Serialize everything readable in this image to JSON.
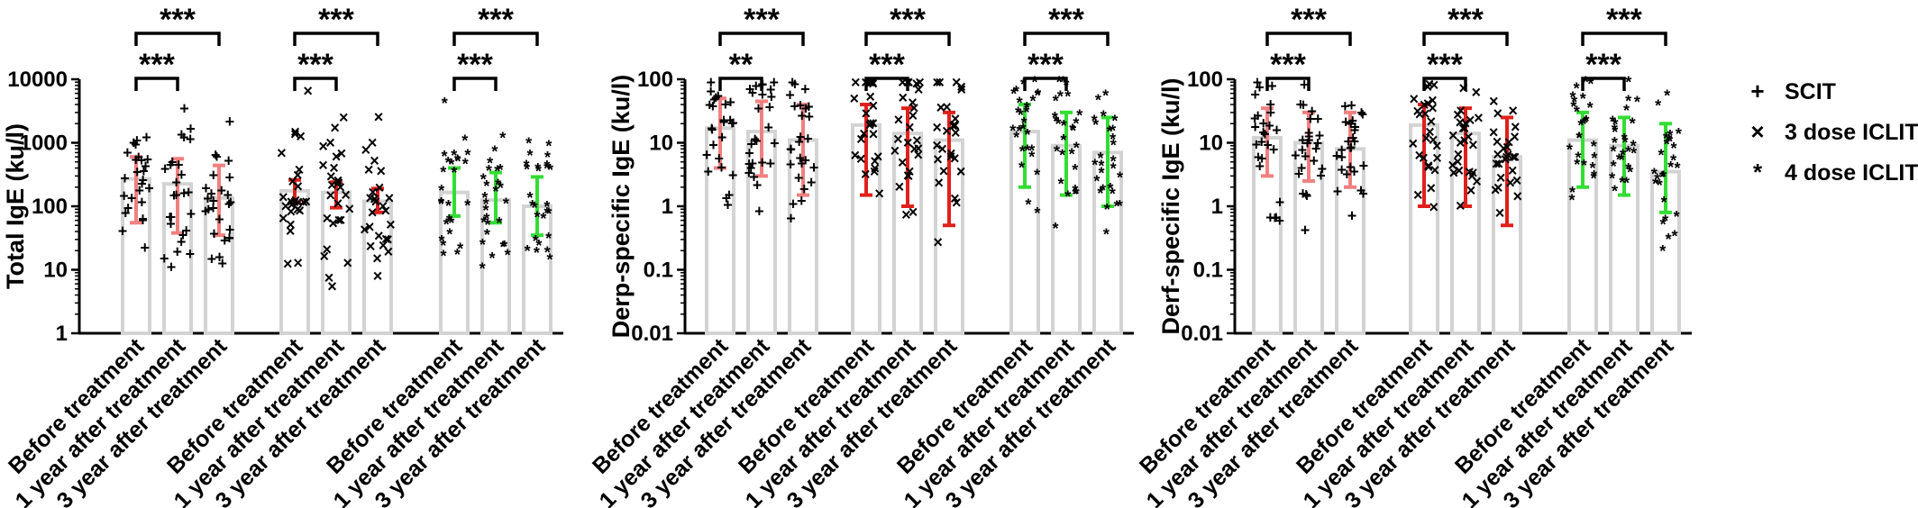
{
  "chart_data": [
    {
      "type": "bar",
      "ylabel": "Total  IgE (ku/l)",
      "yscale": "log",
      "ylim": [
        1,
        10000
      ],
      "yticks": [
        "1",
        "10",
        "100",
        "1000",
        "10000"
      ],
      "categories": [
        "Before treatment",
        "1 year after treatment",
        "3 year after treatment"
      ],
      "series": [
        {
          "name": "SCIT",
          "values": [
            270,
            225,
            135
          ],
          "err_low": [
            55,
            38,
            35
          ],
          "err_high": [
            600,
            560,
            440
          ]
        },
        {
          "name": "3 dose ICLIT",
          "values": [
            175,
            165,
            120
          ],
          "err_low": [
            115,
            95,
            80
          ],
          "err_high": [
            260,
            240,
            190
          ]
        },
        {
          "name": "4 dose ICLIT",
          "values": [
            165,
            125,
            100
          ],
          "err_low": [
            70,
            55,
            35
          ],
          "err_high": [
            400,
            340,
            290
          ]
        }
      ],
      "significance": [
        {
          "series": "SCIT",
          "pairs": [
            [
              "Before treatment",
              "1 year after treatment",
              "***"
            ],
            [
              "Before treatment",
              "3 year after treatment",
              "***"
            ]
          ]
        },
        {
          "series": "3 dose ICLIT",
          "pairs": [
            [
              "Before treatment",
              "1 year after treatment",
              "***"
            ],
            [
              "Before treatment",
              "3 year after treatment",
              "***"
            ]
          ]
        },
        {
          "series": "4 dose ICLIT",
          "pairs": [
            [
              "Before treatment",
              "1 year after treatment",
              "***"
            ],
            [
              "Before treatment",
              "3 year after treatment",
              "***"
            ]
          ]
        }
      ]
    },
    {
      "type": "bar",
      "ylabel": "Derp-specific IgE (ku/l)",
      "yscale": "log",
      "ylim": [
        0.01,
        100
      ],
      "yticks": [
        "0.01",
        "0.1",
        "1",
        "10",
        "100"
      ],
      "categories": [
        "Before treatment",
        "1 year after treatment",
        "3 year after treatment"
      ],
      "series": [
        {
          "name": "SCIT",
          "values": [
            17,
            15,
            11
          ],
          "err_low": [
            4,
            3,
            1.5
          ],
          "err_high": [
            50,
            45,
            40
          ]
        },
        {
          "name": "3 dose ICLIT",
          "values": [
            19,
            14,
            11
          ],
          "err_low": [
            1.5,
            1,
            0.5
          ],
          "err_high": [
            40,
            35,
            30
          ]
        },
        {
          "name": "4 dose ICLIT",
          "values": [
            15,
            9,
            7
          ],
          "err_low": [
            2,
            1.5,
            1
          ],
          "err_high": [
            40,
            30,
            25
          ]
        }
      ],
      "significance": [
        {
          "series": "SCIT",
          "pairs": [
            [
              "Before treatment",
              "1 year after treatment",
              "**"
            ],
            [
              "Before treatment",
              "3 year after treatment",
              "***"
            ]
          ]
        },
        {
          "series": "3 dose ICLIT",
          "pairs": [
            [
              "Before treatment",
              "1 year after treatment",
              "***"
            ],
            [
              "Before treatment",
              "3 year after treatment",
              "***"
            ]
          ]
        },
        {
          "series": "4 dose ICLIT",
          "pairs": [
            [
              "Before treatment",
              "1 year after treatment",
              "***"
            ],
            [
              "Before treatment",
              "3 year after treatment",
              "***"
            ]
          ]
        }
      ]
    },
    {
      "type": "bar",
      "ylabel": "Derf-specific IgE (ku/l)",
      "yscale": "log",
      "ylim": [
        0.01,
        100
      ],
      "yticks": [
        "0.01",
        "0.1",
        "1",
        "10",
        "100"
      ],
      "categories": [
        "Before treatment",
        "1 year after treatment",
        "3 year after treatment"
      ],
      "series": [
        {
          "name": "SCIT",
          "values": [
            12,
            10,
            8
          ],
          "err_low": [
            3,
            2.5,
            2
          ],
          "err_high": [
            35,
            30,
            30
          ]
        },
        {
          "name": "3 dose ICLIT",
          "values": [
            19,
            14,
            6
          ],
          "err_low": [
            1,
            1,
            0.5
          ],
          "err_high": [
            40,
            35,
            25
          ]
        },
        {
          "name": "4 dose ICLIT",
          "values": [
            11,
            9,
            3.5
          ],
          "err_low": [
            2,
            1.5,
            0.8
          ],
          "err_high": [
            30,
            25,
            20
          ]
        }
      ],
      "significance": [
        {
          "series": "SCIT",
          "pairs": [
            [
              "Before treatment",
              "1 year after treatment",
              "***"
            ],
            [
              "Before treatment",
              "3 year after treatment",
              "***"
            ]
          ]
        },
        {
          "series": "3 dose ICLIT",
          "pairs": [
            [
              "Before treatment",
              "1 year after treatment",
              "***"
            ],
            [
              "Before treatment",
              "3 year after treatment",
              "***"
            ]
          ]
        },
        {
          "series": "4 dose ICLIT",
          "pairs": [
            [
              "Before treatment",
              "1 year after treatment",
              "***"
            ],
            [
              "Before treatment",
              "3 year after treatment",
              "***"
            ]
          ]
        }
      ]
    }
  ],
  "legend": {
    "position": "right",
    "items": [
      {
        "label": "SCIT",
        "marker": "+",
        "marker_icon": "plus-marker-icon",
        "color": "#000000"
      },
      {
        "label": "3 dose ICLIT",
        "marker": "×",
        "marker_icon": "cross-marker-icon",
        "color": "#000000"
      },
      {
        "label": "4 dose ICLIT",
        "marker": "*",
        "marker_icon": "star-marker-icon",
        "color": "#404040"
      }
    ]
  },
  "colors": {
    "bar_outline": "#d3d3d3",
    "scit_error": "#f08080",
    "iclit3_error": "#e0201b",
    "iclit4_error": "#33dd33",
    "marker_scit": "#000000",
    "marker_iclit3": "#000000",
    "marker_iclit4": "#3a3a3a"
  }
}
